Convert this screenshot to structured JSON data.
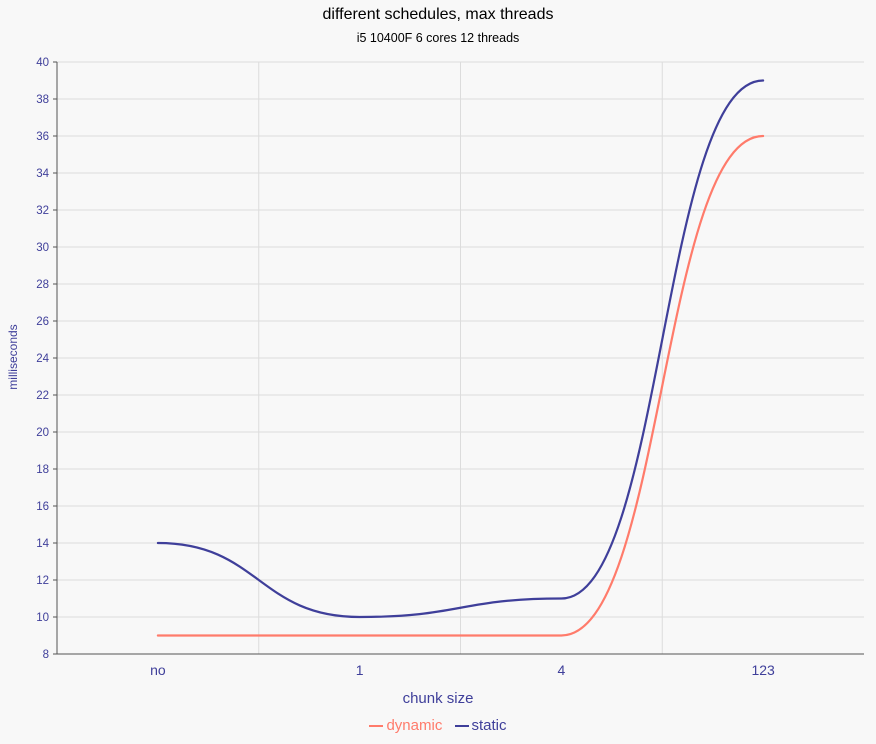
{
  "chart_data": {
    "type": "line",
    "title": "different schedules, max threads",
    "subtitle": "i5 10400F 6 cores 12 threads",
    "xlabel": "chunk size",
    "ylabel": "milliseconds",
    "categories": [
      "no",
      "1",
      "4",
      "123"
    ],
    "ylim": [
      8,
      40
    ],
    "yticks": [
      8,
      10,
      12,
      14,
      16,
      18,
      20,
      22,
      24,
      26,
      28,
      30,
      32,
      34,
      36,
      38,
      40
    ],
    "grid": true,
    "legend_position": "bottom",
    "series": [
      {
        "name": "dynamic",
        "color": "#ff7b6b",
        "values": [
          9,
          9,
          9,
          36
        ]
      },
      {
        "name": "static",
        "color": "#3f3f9a",
        "values": [
          14,
          10,
          11,
          39
        ]
      }
    ]
  }
}
